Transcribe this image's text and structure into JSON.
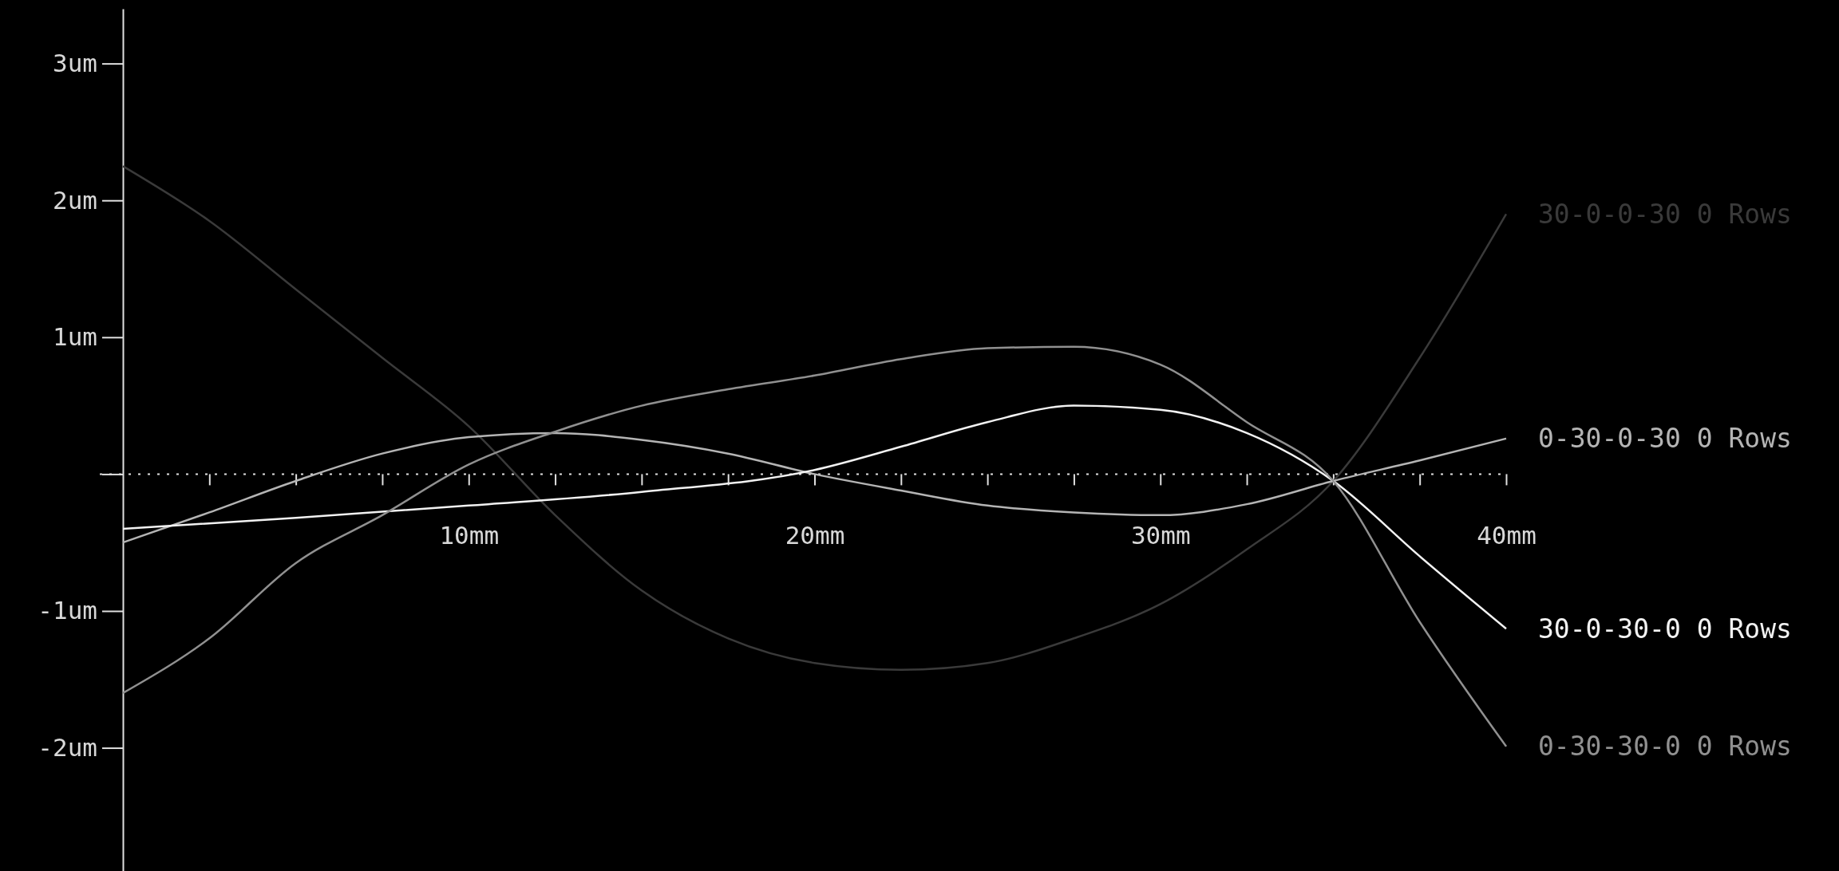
{
  "chart_data": {
    "type": "line",
    "xlim": [
      0,
      40
    ],
    "ylim": [
      -2.9,
      3.4
    ],
    "xticks": [
      {
        "value": 2.5,
        "label": null
      },
      {
        "value": 5,
        "label": null
      },
      {
        "value": 7.5,
        "label": null
      },
      {
        "value": 10,
        "label": "10mm"
      },
      {
        "value": 12.5,
        "label": null
      },
      {
        "value": 15,
        "label": null
      },
      {
        "value": 17.5,
        "label": null
      },
      {
        "value": 20,
        "label": "20mm"
      },
      {
        "value": 22.5,
        "label": null
      },
      {
        "value": 25,
        "label": null
      },
      {
        "value": 27.5,
        "label": null
      },
      {
        "value": 30,
        "label": "30mm"
      },
      {
        "value": 32.5,
        "label": null
      },
      {
        "value": 35,
        "label": null
      },
      {
        "value": 37.5,
        "label": null
      },
      {
        "value": 40,
        "label": "40mm"
      }
    ],
    "yticks": [
      {
        "value": -2,
        "label": "-2um"
      },
      {
        "value": -1,
        "label": "-1um"
      },
      {
        "value": 0,
        "label": null
      },
      {
        "value": 1,
        "label": "1um"
      },
      {
        "value": 2,
        "label": "2um"
      },
      {
        "value": 3,
        "label": "3um"
      }
    ],
    "grid": false,
    "marker": "none",
    "line_style": "solid",
    "ref_lines": [
      {
        "axis": "y",
        "value": 0,
        "line_style": "dotted",
        "color": "#e0e0e0"
      }
    ],
    "series": [
      {
        "name": "30-0-0-30 0 Rows",
        "color": "#3a3a3a",
        "x": [
          0,
          2.5,
          5,
          7.5,
          10,
          12.5,
          15,
          17.5,
          20,
          22.5,
          25,
          27.5,
          30,
          32.5,
          35,
          37.5,
          40
        ],
        "values": [
          2.25,
          1.85,
          1.35,
          0.85,
          0.35,
          -0.3,
          -0.85,
          -1.2,
          -1.38,
          -1.43,
          -1.38,
          -1.2,
          -0.95,
          -0.55,
          -0.05,
          0.85,
          1.9
        ]
      },
      {
        "name": "0-30-0-30 0 Rows",
        "color": "#b4b4b4",
        "x": [
          0,
          2.5,
          5,
          7.5,
          10,
          12.5,
          15,
          17.5,
          20,
          22.5,
          25,
          27.5,
          30,
          32.5,
          35,
          37.5,
          40
        ],
        "values": [
          -0.5,
          -0.28,
          -0.05,
          0.15,
          0.27,
          0.3,
          0.25,
          0.15,
          0.0,
          -0.12,
          -0.23,
          -0.28,
          -0.3,
          -0.22,
          -0.05,
          0.1,
          0.26
        ]
      },
      {
        "name": "30-0-30-0 0 Rows",
        "color": "#f2f2f2",
        "x": [
          0,
          5,
          10,
          15,
          20,
          22.5,
          25,
          27.5,
          30,
          32.5,
          35,
          37.5,
          40
        ],
        "values": [
          -0.4,
          -0.32,
          -0.23,
          -0.13,
          0.03,
          0.2,
          0.38,
          0.5,
          0.47,
          0.3,
          -0.05,
          -0.6,
          -1.13
        ]
      },
      {
        "name": "0-30-30-0 0 Rows",
        "color": "#909090",
        "x": [
          0,
          2.5,
          5,
          7.5,
          10,
          12.5,
          15,
          17.5,
          20,
          22.5,
          25,
          27.5,
          30,
          32.5,
          35,
          37.5,
          40
        ],
        "values": [
          -1.6,
          -1.2,
          -0.65,
          -0.3,
          0.07,
          0.31,
          0.5,
          0.62,
          0.72,
          0.84,
          0.92,
          0.93,
          0.8,
          0.38,
          -0.05,
          -1.08,
          -1.99
        ]
      }
    ]
  }
}
